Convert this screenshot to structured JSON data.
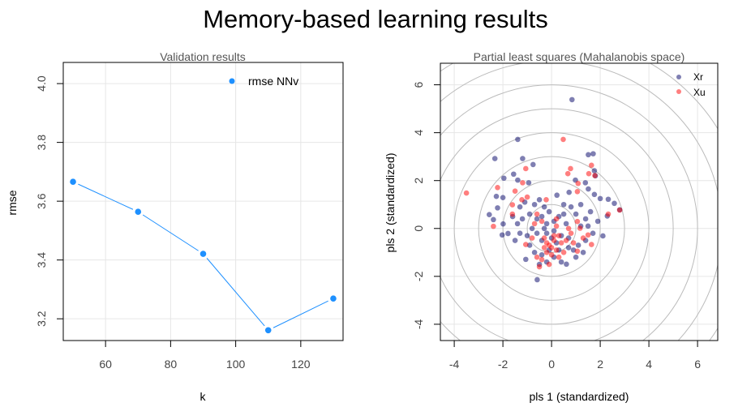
{
  "title": "Memory-based learning results",
  "chart_data": [
    {
      "type": "line",
      "title": "Validation results",
      "xlabel": "k",
      "ylabel": "rmse",
      "xlim": [
        47,
        133
      ],
      "ylim": [
        3.126,
        4.072
      ],
      "xticks": [
        60,
        80,
        100,
        120
      ],
      "yticks": [
        3.2,
        3.4,
        3.6,
        3.8,
        4.0
      ],
      "ytick_labels": [
        "3.2",
        "3.4",
        "3.6",
        "3.8",
        "4.0"
      ],
      "grid": true,
      "legend": "top-right",
      "series": [
        {
          "name": "rmse NNv",
          "color": "#1E90FF",
          "x": [
            50,
            70,
            90,
            110,
            130
          ],
          "y": [
            3.666,
            3.564,
            3.421,
            3.161,
            3.269
          ]
        }
      ]
    },
    {
      "type": "scatter",
      "title": "Partial least squares (Mahalanobis space)",
      "xlabel": "pls 1 (standardized)",
      "ylabel": "pls 2 (standardized)",
      "xlim": [
        -4.57,
        6.83
      ],
      "ylim": [
        -4.68,
        6.9
      ],
      "xticks": [
        -4,
        -2,
        0,
        2,
        4,
        6
      ],
      "yticks": [
        -4,
        -2,
        0,
        2,
        4,
        6
      ],
      "grid": true,
      "legend": "top-right",
      "circle_radii": [
        1,
        2,
        3,
        4,
        5,
        6,
        7,
        8
      ],
      "series": [
        {
          "name": "Xr",
          "color": "#000066",
          "points": [
            [
              0.84,
              5.38
            ],
            [
              -1.39,
              3.72
            ],
            [
              -2.33,
              2.92
            ],
            [
              -1.19,
              2.92
            ],
            [
              -0.76,
              2.67
            ],
            [
              1.51,
              3.08
            ],
            [
              1.71,
              3.12
            ],
            [
              -1.96,
              2.1
            ],
            [
              -1.56,
              2.27
            ],
            [
              -1.39,
              2.02
            ],
            [
              -0.94,
              1.91
            ],
            [
              -2.27,
              1.34
            ],
            [
              -2.0,
              1.29
            ],
            [
              -2.56,
              0.58
            ],
            [
              -2.39,
              0.37
            ],
            [
              -1.99,
              0.19
            ],
            [
              -2.03,
              -0.27
            ],
            [
              -1.79,
              -0.21
            ],
            [
              -0.59,
              -2.14
            ],
            [
              -1.06,
              -1.29
            ],
            [
              0.61,
              -1.49
            ],
            [
              2.11,
              -0.31
            ],
            [
              2.33,
              1.22
            ],
            [
              2.58,
              1.05
            ],
            [
              2.8,
              0.78
            ],
            [
              1.76,
              2.41
            ],
            [
              1.39,
              1.91
            ],
            [
              1.51,
              1.65
            ],
            [
              0.98,
              2.02
            ],
            [
              0.72,
              1.51
            ],
            [
              0.22,
              1.39
            ],
            [
              1.76,
              1.42
            ],
            [
              2.0,
              1.25
            ],
            [
              2.29,
              0.52
            ],
            [
              -2.22,
              0.86
            ],
            [
              1.8,
              2.2
            ],
            [
              -1.3,
              0.9
            ],
            [
              -1.1,
              1.1
            ],
            [
              -0.7,
              1.0
            ],
            [
              -0.5,
              1.2
            ],
            [
              -0.3,
              0.9
            ],
            [
              -0.9,
              0.6
            ],
            [
              -1.2,
              0.4
            ],
            [
              -0.6,
              0.4
            ],
            [
              -0.4,
              0.5
            ],
            [
              -0.2,
              0.2
            ],
            [
              0.1,
              0.3
            ],
            [
              0.3,
              0.5
            ],
            [
              0.5,
              0.6
            ],
            [
              0.6,
              0.2
            ],
            [
              0.8,
              0.9
            ],
            [
              1.0,
              0.6
            ],
            [
              1.2,
              1.0
            ],
            [
              1.4,
              0.4
            ],
            [
              1.6,
              0.7
            ],
            [
              1.9,
              0.3
            ],
            [
              1.7,
              -0.2
            ],
            [
              1.4,
              -0.5
            ],
            [
              1.1,
              -0.7
            ],
            [
              1.3,
              -1.0
            ],
            [
              1.0,
              -1.2
            ],
            [
              0.9,
              -0.9
            ],
            [
              0.7,
              -0.4
            ],
            [
              0.4,
              -0.3
            ],
            [
              0.2,
              -0.6
            ],
            [
              0.0,
              -0.4
            ],
            [
              -0.2,
              -0.2
            ],
            [
              -0.4,
              -0.5
            ],
            [
              -0.6,
              -0.2
            ],
            [
              -0.8,
              0.0
            ],
            [
              -1.0,
              -0.3
            ],
            [
              -1.3,
              -0.2
            ],
            [
              -1.4,
              0.2
            ],
            [
              -0.9,
              -0.7
            ],
            [
              -0.7,
              -1.0
            ],
            [
              -0.4,
              -1.1
            ],
            [
              -0.2,
              -1.4
            ],
            [
              0.1,
              -1.2
            ],
            [
              0.3,
              -0.9
            ],
            [
              -0.5,
              -1.5
            ],
            [
              -0.1,
              -0.9
            ],
            [
              0.4,
              -1.4
            ],
            [
              1.5,
              0.1
            ],
            [
              1.2,
              0.1
            ],
            [
              0.7,
              -0.8
            ],
            [
              -0.3,
              0.0
            ],
            [
              0.1,
              -0.1
            ],
            [
              -1.6,
              0.5
            ],
            [
              -1.5,
              -0.5
            ],
            [
              0.5,
              1.0
            ],
            [
              -0.1,
              0.7
            ]
          ]
        },
        {
          "name": "Xu",
          "color": "#FF0000",
          "points": [
            [
              -3.5,
              1.48
            ],
            [
              0.48,
              3.72
            ],
            [
              -1.06,
              2.5
            ],
            [
              0.78,
              2.5
            ],
            [
              0.67,
              2.29
            ],
            [
              1.53,
              2.29
            ],
            [
              1.64,
              2.64
            ],
            [
              1.78,
              2.21
            ],
            [
              -1.19,
              1.91
            ],
            [
              -2.22,
              1.71
            ],
            [
              -1.5,
              1.56
            ],
            [
              -2.39,
              0.09
            ],
            [
              1.06,
              1.54
            ],
            [
              1.09,
              1.88
            ],
            [
              -0.22,
              1.2
            ],
            [
              -1.0,
              1.31
            ],
            [
              -1.22,
              1.2
            ],
            [
              -1.61,
              0.99
            ],
            [
              -1.61,
              0.6
            ],
            [
              2.8,
              0.77
            ],
            [
              2.33,
              0.6
            ],
            [
              1.64,
              -0.67
            ],
            [
              1.5,
              -0.27
            ],
            [
              1.17,
              0.01
            ],
            [
              1.06,
              0.29
            ],
            [
              -1.06,
              -0.67
            ],
            [
              1.06,
              -0.95
            ],
            [
              -0.6,
              0.6
            ],
            [
              -0.4,
              0.3
            ],
            [
              0.2,
              0.1
            ],
            [
              0.3,
              -0.3
            ],
            [
              0.1,
              -0.5
            ],
            [
              -0.1,
              -0.7
            ],
            [
              -0.3,
              -0.8
            ],
            [
              -0.2,
              -1.0
            ],
            [
              0.0,
              -1.1
            ],
            [
              0.2,
              -0.9
            ],
            [
              -0.4,
              -1.3
            ],
            [
              -0.1,
              -1.5
            ],
            [
              -0.5,
              -1.6
            ],
            [
              0.1,
              -0.3
            ],
            [
              0.4,
              -0.6
            ],
            [
              0.6,
              -0.5
            ],
            [
              0.8,
              -0.2
            ],
            [
              0.9,
              -0.6
            ],
            [
              -0.7,
              0.2
            ],
            [
              -0.3,
              -0.4
            ],
            [
              0.0,
              -0.8
            ],
            [
              0.3,
              -1.2
            ],
            [
              -0.6,
              -1.2
            ],
            [
              0.2,
              0.4
            ],
            [
              0.7,
              0.0
            ],
            [
              -0.8,
              -0.4
            ],
            [
              1.3,
              -0.4
            ],
            [
              0.5,
              -1.0
            ],
            [
              -0.2,
              -0.6
            ]
          ]
        }
      ]
    }
  ]
}
